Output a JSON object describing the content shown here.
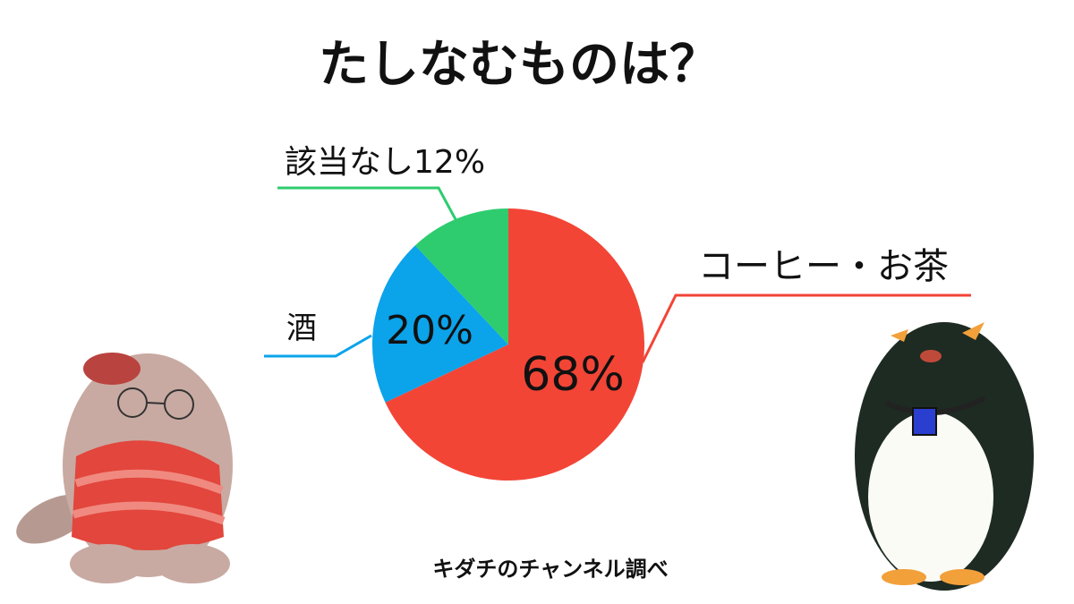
{
  "chart_data": {
    "type": "pie",
    "title": "たしなむものは？",
    "categories": [
      "コーヒー・お茶",
      "酒",
      "該当なし"
    ],
    "values": [
      68,
      20,
      12
    ],
    "value_labels": [
      "68%",
      "20%",
      "12%"
    ],
    "colors": [
      "#f24536",
      "#0ba3ea",
      "#2ecc6f"
    ],
    "source": "キダチのチャンネル調べ"
  }
}
